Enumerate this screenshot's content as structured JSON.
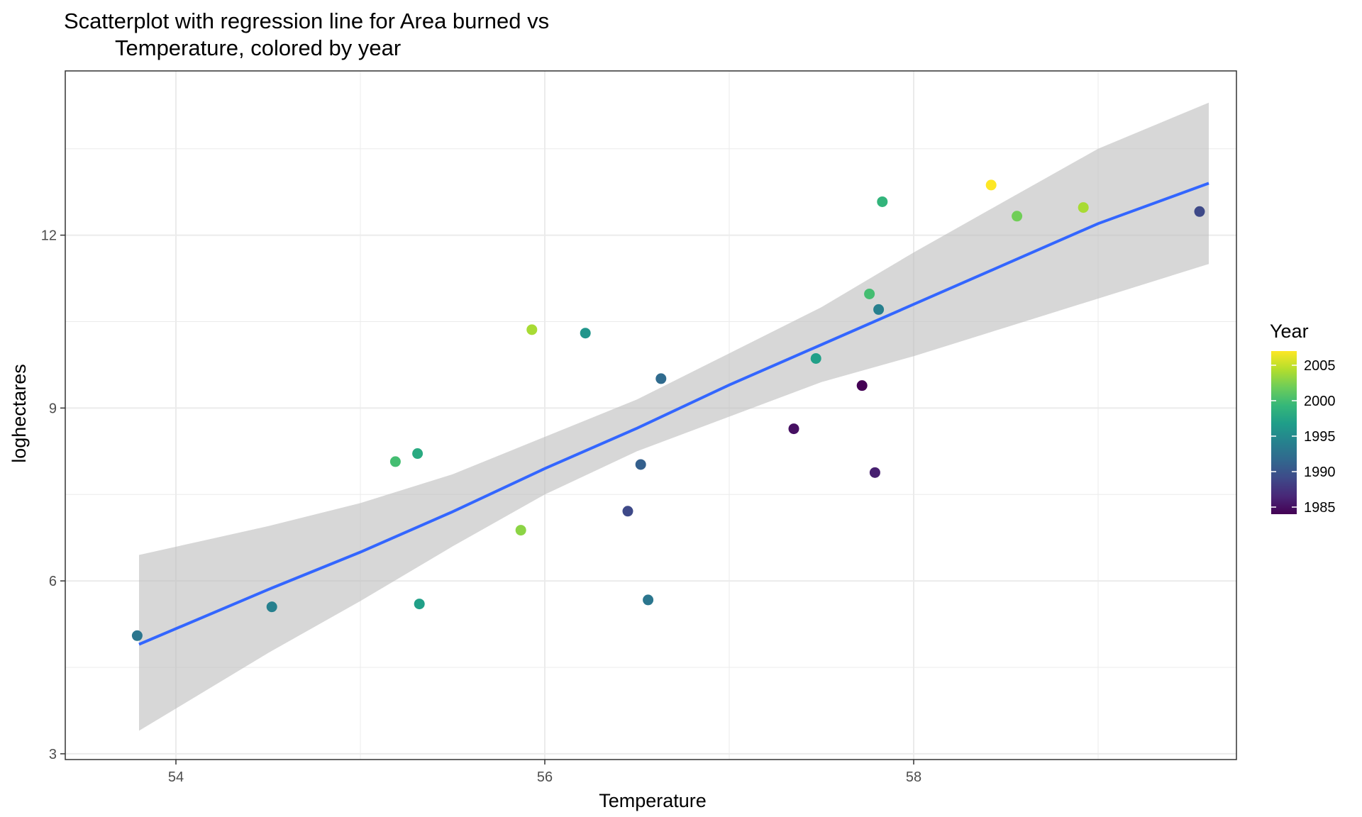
{
  "chart_data": {
    "type": "scatter",
    "title_lines": [
      "Scatterplot with regression line for Area burned vs",
      "Temperature, colored by year"
    ],
    "xlabel": "Temperature",
    "ylabel": "loghectares",
    "xlim": [
      53.4,
      59.75
    ],
    "ylim": [
      2.9,
      14.85
    ],
    "x_ticks": [
      54,
      56,
      58
    ],
    "y_ticks": [
      3,
      6,
      9,
      12
    ],
    "grid": true,
    "legend": {
      "title": "Year",
      "placement": "right",
      "type": "colorbar",
      "range": [
        1984,
        2007
      ],
      "ticks": [
        1985,
        1990,
        1995,
        2000,
        2005
      ]
    },
    "colors": {
      "regression_line": "#3366FF",
      "confidence_band": "#bdbdbd",
      "grid": "#ebebeb",
      "panel_border": "#333333"
    },
    "colormap": [
      "#440154",
      "#482878",
      "#3E4A89",
      "#31688E",
      "#26828E",
      "#1F9E89",
      "#35B779",
      "#6DCD59",
      "#B4DE2C",
      "#FDE725"
    ],
    "regression": {
      "x": [
        53.8,
        54.5,
        55.0,
        55.5,
        56.0,
        56.5,
        57.0,
        57.5,
        58.0,
        58.5,
        59.0,
        59.6
      ],
      "y": [
        4.9,
        5.85,
        6.5,
        7.2,
        7.95,
        8.65,
        9.4,
        10.1,
        10.8,
        11.5,
        12.2,
        12.9
      ],
      "lower": [
        3.4,
        4.75,
        5.65,
        6.6,
        7.5,
        8.25,
        8.85,
        9.45,
        9.9,
        10.4,
        10.9,
        11.5
      ],
      "upper": [
        6.45,
        6.95,
        7.35,
        7.85,
        8.5,
        9.15,
        9.95,
        10.75,
        11.7,
        12.6,
        13.5,
        14.3
      ]
    },
    "points": [
      {
        "x": 53.79,
        "y": 5.05,
        "year": 1993
      },
      {
        "x": 54.52,
        "y": 5.55,
        "year": 1994
      },
      {
        "x": 55.19,
        "y": 8.07,
        "year": 2000
      },
      {
        "x": 55.31,
        "y": 8.21,
        "year": 1998
      },
      {
        "x": 55.32,
        "y": 5.6,
        "year": 1997
      },
      {
        "x": 55.87,
        "y": 6.88,
        "year": 2003
      },
      {
        "x": 55.93,
        "y": 10.36,
        "year": 2004
      },
      {
        "x": 56.22,
        "y": 10.3,
        "year": 1996
      },
      {
        "x": 56.45,
        "y": 7.21,
        "year": 1989
      },
      {
        "x": 56.52,
        "y": 8.02,
        "year": 1991
      },
      {
        "x": 56.56,
        "y": 5.67,
        "year": 1993
      },
      {
        "x": 56.63,
        "y": 9.51,
        "year": 1992
      },
      {
        "x": 57.35,
        "y": 8.64,
        "year": 1985
      },
      {
        "x": 57.47,
        "y": 9.86,
        "year": 1997
      },
      {
        "x": 57.72,
        "y": 9.39,
        "year": 1984
      },
      {
        "x": 57.76,
        "y": 10.98,
        "year": 2000
      },
      {
        "x": 57.79,
        "y": 7.88,
        "year": 1986
      },
      {
        "x": 57.81,
        "y": 10.71,
        "year": 1994
      },
      {
        "x": 57.83,
        "y": 12.58,
        "year": 1999
      },
      {
        "x": 58.42,
        "y": 12.87,
        "year": 2007
      },
      {
        "x": 58.56,
        "y": 12.33,
        "year": 2002
      },
      {
        "x": 58.92,
        "y": 12.48,
        "year": 2004
      },
      {
        "x": 59.55,
        "y": 12.41,
        "year": 1989
      }
    ]
  }
}
